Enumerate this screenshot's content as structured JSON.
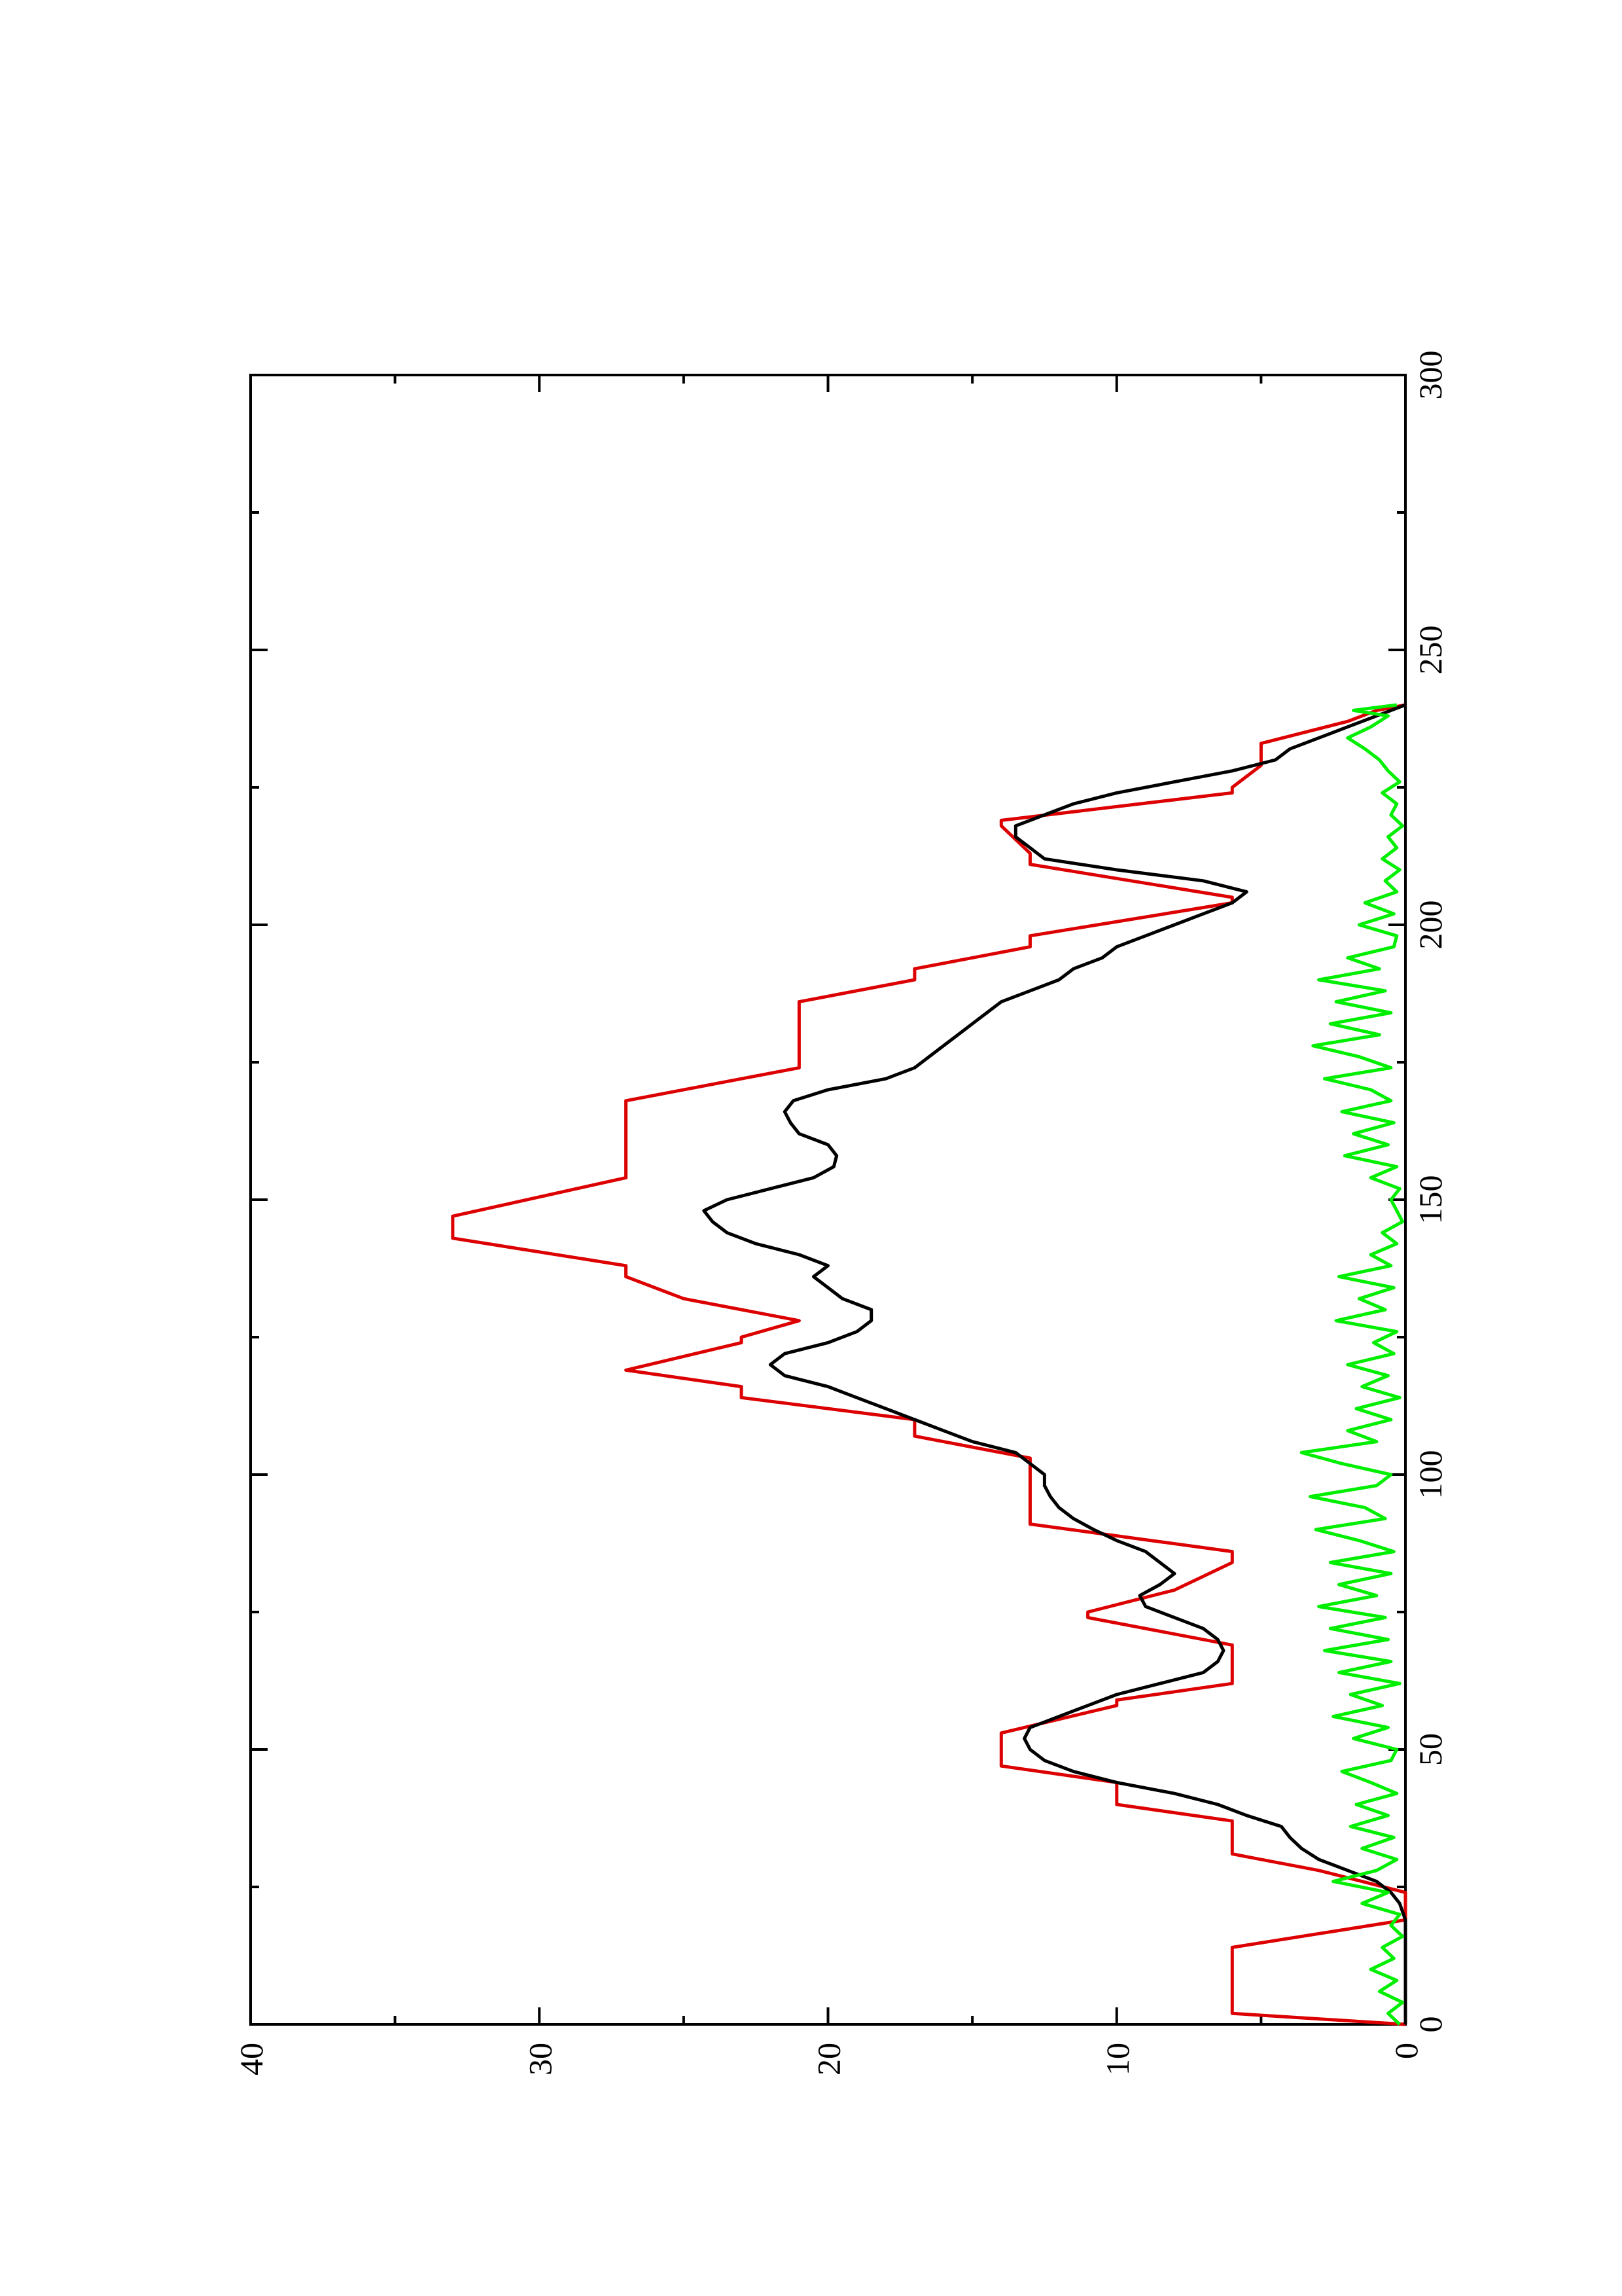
{
  "chart_data": {
    "type": "line",
    "title": "",
    "xlabel": "",
    "ylabel": "",
    "orientation": "rotated 90 degrees counter-clockwise on the page",
    "xlim": [
      0,
      300
    ],
    "ylim": [
      0,
      40
    ],
    "x_ticks": [
      0,
      50,
      100,
      150,
      200,
      250,
      300
    ],
    "x_tick_labels": [
      "0",
      "50",
      "100",
      "150",
      "200",
      "250",
      "300"
    ],
    "x_minor_ticks": [
      25,
      75,
      125,
      175,
      225,
      275
    ],
    "y_ticks": [
      0,
      10,
      20,
      30,
      40
    ],
    "y_tick_labels": [
      "0",
      "10",
      "20",
      "30",
      "40"
    ],
    "y_minor_ticks": [
      5,
      15,
      25,
      35
    ],
    "grid": false,
    "legend": "none",
    "series": [
      {
        "color": "#dd0000",
        "style": "step",
        "points": [
          [
            0,
            0
          ],
          [
            2,
            6
          ],
          [
            14,
            6
          ],
          [
            19,
            0
          ],
          [
            24,
            0
          ],
          [
            28,
            3
          ],
          [
            31,
            6
          ],
          [
            37,
            6
          ],
          [
            40,
            10
          ],
          [
            44,
            10
          ],
          [
            47,
            14
          ],
          [
            53,
            14
          ],
          [
            58,
            10
          ],
          [
            59,
            10
          ],
          [
            62,
            6
          ],
          [
            69,
            6
          ],
          [
            74,
            11
          ],
          [
            75,
            11
          ],
          [
            79,
            8
          ],
          [
            84,
            6
          ],
          [
            86,
            6
          ],
          [
            91,
            13
          ],
          [
            103,
            13
          ],
          [
            107,
            17
          ],
          [
            110,
            17
          ],
          [
            114,
            23
          ],
          [
            116,
            23
          ],
          [
            119,
            27
          ],
          [
            124,
            23
          ],
          [
            125,
            23
          ],
          [
            128,
            21
          ],
          [
            132,
            25
          ],
          [
            136,
            27
          ],
          [
            138,
            27
          ],
          [
            143,
            33
          ],
          [
            147,
            33
          ],
          [
            154,
            27
          ],
          [
            168,
            27
          ],
          [
            174,
            21
          ],
          [
            186,
            21
          ],
          [
            190,
            17
          ],
          [
            192,
            17
          ],
          [
            196,
            13
          ],
          [
            198,
            13
          ],
          [
            204,
            6
          ],
          [
            205,
            6
          ],
          [
            211,
            13
          ],
          [
            213,
            13
          ],
          [
            218,
            14
          ],
          [
            219,
            14
          ],
          [
            224,
            6
          ],
          [
            225,
            6
          ],
          [
            229,
            5
          ],
          [
            233,
            5
          ],
          [
            237,
            2
          ],
          [
            239,
            1
          ],
          [
            240,
            0
          ]
        ]
      },
      {
        "color": "#000000",
        "style": "line",
        "points": [
          [
            0,
            0
          ],
          [
            5,
            0
          ],
          [
            10,
            0
          ],
          [
            15,
            0
          ],
          [
            19,
            0
          ],
          [
            22,
            0.2
          ],
          [
            24,
            0.5
          ],
          [
            26,
            1
          ],
          [
            28,
            2
          ],
          [
            30,
            3
          ],
          [
            32,
            3.6
          ],
          [
            34,
            4
          ],
          [
            36,
            4.3
          ],
          [
            38,
            5.5
          ],
          [
            40,
            6.5
          ],
          [
            42,
            8
          ],
          [
            44,
            10
          ],
          [
            46,
            11.5
          ],
          [
            48,
            12.5
          ],
          [
            50,
            13
          ],
          [
            52,
            13.2
          ],
          [
            54,
            13
          ],
          [
            56,
            12
          ],
          [
            58,
            11
          ],
          [
            60,
            10
          ],
          [
            62,
            8.5
          ],
          [
            64,
            7
          ],
          [
            66,
            6.5
          ],
          [
            68,
            6.3
          ],
          [
            70,
            6.5
          ],
          [
            72,
            7
          ],
          [
            74,
            8
          ],
          [
            76,
            9
          ],
          [
            78,
            9.2
          ],
          [
            80,
            8.5
          ],
          [
            82,
            8
          ],
          [
            84,
            8.5
          ],
          [
            86,
            9
          ],
          [
            88,
            10
          ],
          [
            90,
            10.8
          ],
          [
            92,
            11.5
          ],
          [
            94,
            12
          ],
          [
            96,
            12.3
          ],
          [
            98,
            12.5
          ],
          [
            100,
            12.5
          ],
          [
            102,
            13
          ],
          [
            104,
            13.5
          ],
          [
            106,
            15
          ],
          [
            108,
            16
          ],
          [
            110,
            17
          ],
          [
            112,
            18
          ],
          [
            114,
            19
          ],
          [
            116,
            20
          ],
          [
            118,
            21.5
          ],
          [
            120,
            22
          ],
          [
            122,
            21.5
          ],
          [
            124,
            20
          ],
          [
            126,
            19
          ],
          [
            128,
            18.5
          ],
          [
            130,
            18.5
          ],
          [
            132,
            19.5
          ],
          [
            134,
            20
          ],
          [
            136,
            20.5
          ],
          [
            138,
            20
          ],
          [
            140,
            21
          ],
          [
            142,
            22.5
          ],
          [
            144,
            23.5
          ],
          [
            146,
            24
          ],
          [
            148,
            24.3
          ],
          [
            150,
            23.5
          ],
          [
            152,
            22
          ],
          [
            154,
            20.5
          ],
          [
            156,
            19.8
          ],
          [
            158,
            19.7
          ],
          [
            160,
            20
          ],
          [
            162,
            21
          ],
          [
            164,
            21.3
          ],
          [
            166,
            21.5
          ],
          [
            168,
            21.2
          ],
          [
            170,
            20
          ],
          [
            172,
            18
          ],
          [
            174,
            17
          ],
          [
            176,
            16.5
          ],
          [
            178,
            16
          ],
          [
            180,
            15.5
          ],
          [
            182,
            15
          ],
          [
            184,
            14.5
          ],
          [
            186,
            14
          ],
          [
            188,
            13
          ],
          [
            190,
            12
          ],
          [
            192,
            11.5
          ],
          [
            194,
            10.5
          ],
          [
            196,
            10
          ],
          [
            198,
            9
          ],
          [
            200,
            8
          ],
          [
            202,
            7
          ],
          [
            204,
            6
          ],
          [
            206,
            5.5
          ],
          [
            208,
            7
          ],
          [
            210,
            10
          ],
          [
            212,
            12.5
          ],
          [
            214,
            13
          ],
          [
            216,
            13.5
          ],
          [
            218,
            13.5
          ],
          [
            220,
            12.5
          ],
          [
            222,
            11.5
          ],
          [
            224,
            10
          ],
          [
            226,
            8
          ],
          [
            228,
            6
          ],
          [
            230,
            4.5
          ],
          [
            232,
            4
          ],
          [
            234,
            3
          ],
          [
            236,
            2
          ],
          [
            238,
            1
          ],
          [
            240,
            0
          ]
        ]
      },
      {
        "color": "#00ee00",
        "style": "line",
        "points": [
          [
            0,
            0.2
          ],
          [
            2,
            0.6
          ],
          [
            4,
            0.1
          ],
          [
            6,
            0.9
          ],
          [
            8,
            0.3
          ],
          [
            10,
            1.2
          ],
          [
            12,
            0.4
          ],
          [
            14,
            0.8
          ],
          [
            16,
            0.1
          ],
          [
            18,
            0.5
          ],
          [
            20,
            0.2
          ],
          [
            22,
            1.5
          ],
          [
            24,
            0.6
          ],
          [
            26,
            2.5
          ],
          [
            28,
            1.0
          ],
          [
            30,
            0.3
          ],
          [
            32,
            1.5
          ],
          [
            34,
            0.4
          ],
          [
            36,
            1.9
          ],
          [
            38,
            0.6
          ],
          [
            40,
            1.7
          ],
          [
            42,
            0.3
          ],
          [
            44,
            1.2
          ],
          [
            46,
            2.2
          ],
          [
            48,
            0.5
          ],
          [
            50,
            0.3
          ],
          [
            52,
            1.8
          ],
          [
            54,
            0.6
          ],
          [
            56,
            2.5
          ],
          [
            58,
            0.8
          ],
          [
            60,
            1.9
          ],
          [
            62,
            0.2
          ],
          [
            64,
            2.3
          ],
          [
            66,
            0.5
          ],
          [
            68,
            2.8
          ],
          [
            70,
            0.6
          ],
          [
            72,
            2.6
          ],
          [
            74,
            0.7
          ],
          [
            76,
            3.0
          ],
          [
            78,
            1.0
          ],
          [
            80,
            2.3
          ],
          [
            82,
            0.5
          ],
          [
            84,
            2.6
          ],
          [
            86,
            0.4
          ],
          [
            88,
            1.6
          ],
          [
            90,
            3.1
          ],
          [
            92,
            0.7
          ],
          [
            94,
            1.4
          ],
          [
            96,
            3.3
          ],
          [
            98,
            1.0
          ],
          [
            100,
            0.5
          ],
          [
            102,
            2.2
          ],
          [
            104,
            3.6
          ],
          [
            106,
            1.0
          ],
          [
            108,
            2.0
          ],
          [
            110,
            0.5
          ],
          [
            112,
            1.7
          ],
          [
            114,
            0.2
          ],
          [
            116,
            1.5
          ],
          [
            118,
            0.6
          ],
          [
            120,
            2.0
          ],
          [
            122,
            0.4
          ],
          [
            124,
            1.1
          ],
          [
            126,
            0.3
          ],
          [
            128,
            2.4
          ],
          [
            130,
            0.7
          ],
          [
            132,
            1.6
          ],
          [
            134,
            0.4
          ],
          [
            136,
            2.3
          ],
          [
            138,
            0.5
          ],
          [
            140,
            1.2
          ],
          [
            142,
            0.3
          ],
          [
            144,
            0.8
          ],
          [
            146,
            0.1
          ],
          [
            148,
            0.3
          ],
          [
            150,
            0.5
          ],
          [
            152,
            0.2
          ],
          [
            154,
            1.2
          ],
          [
            156,
            0.3
          ],
          [
            158,
            2.1
          ],
          [
            160,
            0.6
          ],
          [
            162,
            1.8
          ],
          [
            164,
            0.4
          ],
          [
            166,
            2.2
          ],
          [
            168,
            0.5
          ],
          [
            170,
            1.2
          ],
          [
            172,
            2.8
          ],
          [
            174,
            0.5
          ],
          [
            176,
            1.6
          ],
          [
            178,
            3.2
          ],
          [
            180,
            0.9
          ],
          [
            182,
            2.6
          ],
          [
            184,
            0.5
          ],
          [
            186,
            2.4
          ],
          [
            188,
            0.7
          ],
          [
            190,
            3.0
          ],
          [
            192,
            0.9
          ],
          [
            194,
            2.0
          ],
          [
            196,
            0.4
          ],
          [
            198,
            0.3
          ],
          [
            200,
            1.6
          ],
          [
            202,
            0.4
          ],
          [
            204,
            1.4
          ],
          [
            206,
            0.3
          ],
          [
            208,
            0.7
          ],
          [
            210,
            0.2
          ],
          [
            212,
            0.8
          ],
          [
            214,
            0.3
          ],
          [
            216,
            0.6
          ],
          [
            218,
            0.1
          ],
          [
            220,
            0.5
          ],
          [
            222,
            0.3
          ],
          [
            224,
            0.8
          ],
          [
            226,
            0.2
          ],
          [
            228,
            0.6
          ],
          [
            230,
            0.9
          ],
          [
            232,
            1.4
          ],
          [
            234,
            2.0
          ],
          [
            236,
            1.2
          ],
          [
            238,
            0.6
          ],
          [
            239,
            1.8
          ],
          [
            240,
            0.3
          ]
        ]
      }
    ]
  }
}
